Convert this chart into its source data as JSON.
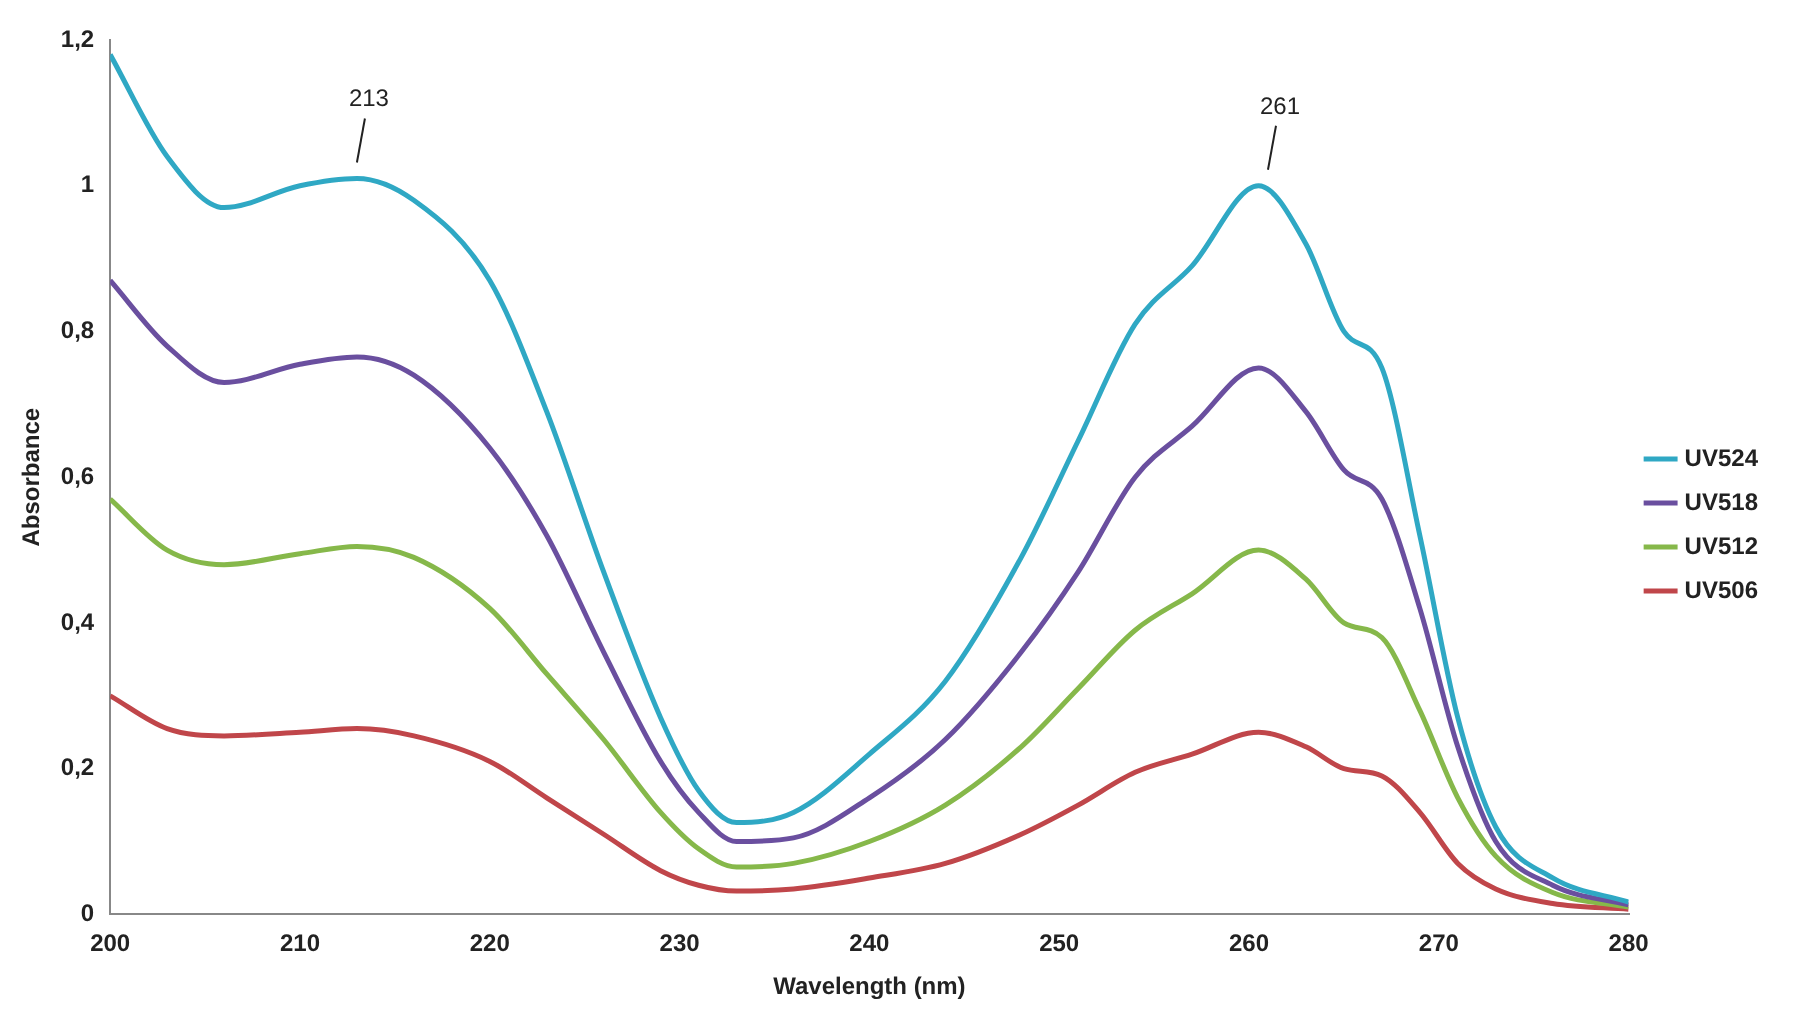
{
  "chart_data": {
    "type": "line",
    "xlabel": "Wavelength (nm)",
    "ylabel": "Absorbance",
    "x": [
      200,
      203,
      206,
      210,
      213,
      216,
      220,
      223,
      226,
      229,
      231,
      233,
      236,
      240,
      244,
      248,
      251,
      254,
      257,
      260.5,
      263,
      265,
      267,
      269,
      271,
      273,
      276,
      280
    ],
    "series": [
      {
        "name": "UV524",
        "color": "#2fa8c4",
        "values": [
          1.18,
          1.04,
          0.97,
          1.0,
          1.01,
          0.98,
          0.87,
          0.69,
          0.47,
          0.27,
          0.17,
          0.126,
          0.14,
          0.22,
          0.32,
          0.49,
          0.65,
          0.81,
          0.89,
          1.0,
          0.92,
          0.8,
          0.75,
          0.52,
          0.27,
          0.12,
          0.05,
          0.017
        ]
      },
      {
        "name": "UV518",
        "color": "#6a4f9f",
        "values": [
          0.87,
          0.78,
          0.73,
          0.755,
          0.765,
          0.74,
          0.64,
          0.52,
          0.36,
          0.21,
          0.14,
          0.1,
          0.105,
          0.16,
          0.24,
          0.36,
          0.47,
          0.6,
          0.67,
          0.75,
          0.69,
          0.61,
          0.57,
          0.42,
          0.23,
          0.1,
          0.04,
          0.013
        ]
      },
      {
        "name": "UV512",
        "color": "#86b84a",
        "values": [
          0.57,
          0.5,
          0.48,
          0.495,
          0.505,
          0.49,
          0.42,
          0.33,
          0.24,
          0.14,
          0.09,
          0.065,
          0.07,
          0.1,
          0.15,
          0.23,
          0.31,
          0.39,
          0.44,
          0.5,
          0.46,
          0.4,
          0.38,
          0.28,
          0.16,
          0.08,
          0.03,
          0.01
        ]
      },
      {
        "name": "UV506",
        "color": "#c0464a",
        "values": [
          0.3,
          0.255,
          0.245,
          0.25,
          0.255,
          0.245,
          0.21,
          0.16,
          0.11,
          0.06,
          0.04,
          0.032,
          0.035,
          0.05,
          0.07,
          0.11,
          0.15,
          0.195,
          0.22,
          0.25,
          0.23,
          0.2,
          0.19,
          0.14,
          0.07,
          0.035,
          0.015,
          0.007
        ]
      }
    ],
    "xlim": [
      200,
      280
    ],
    "xticks": [
      200,
      210,
      220,
      230,
      240,
      250,
      260,
      270,
      280
    ],
    "ylim": [
      0,
      1.2
    ],
    "yticks": [
      0,
      {
        "value": 0.2,
        "label": "0,2"
      },
      {
        "value": 0.4,
        "label": "0,4"
      },
      {
        "value": 0.6,
        "label": "0,6"
      },
      {
        "value": 0.8,
        "label": "0,8"
      },
      1,
      {
        "value": 1.2,
        "label": "1,2"
      }
    ],
    "annotations": [
      {
        "text": "213",
        "x": 213,
        "y": 1.01
      },
      {
        "text": "261",
        "x": 261,
        "y": 1.0
      }
    ],
    "grid": false,
    "legend": "right",
    "marker": "none",
    "line_style": "solid"
  }
}
